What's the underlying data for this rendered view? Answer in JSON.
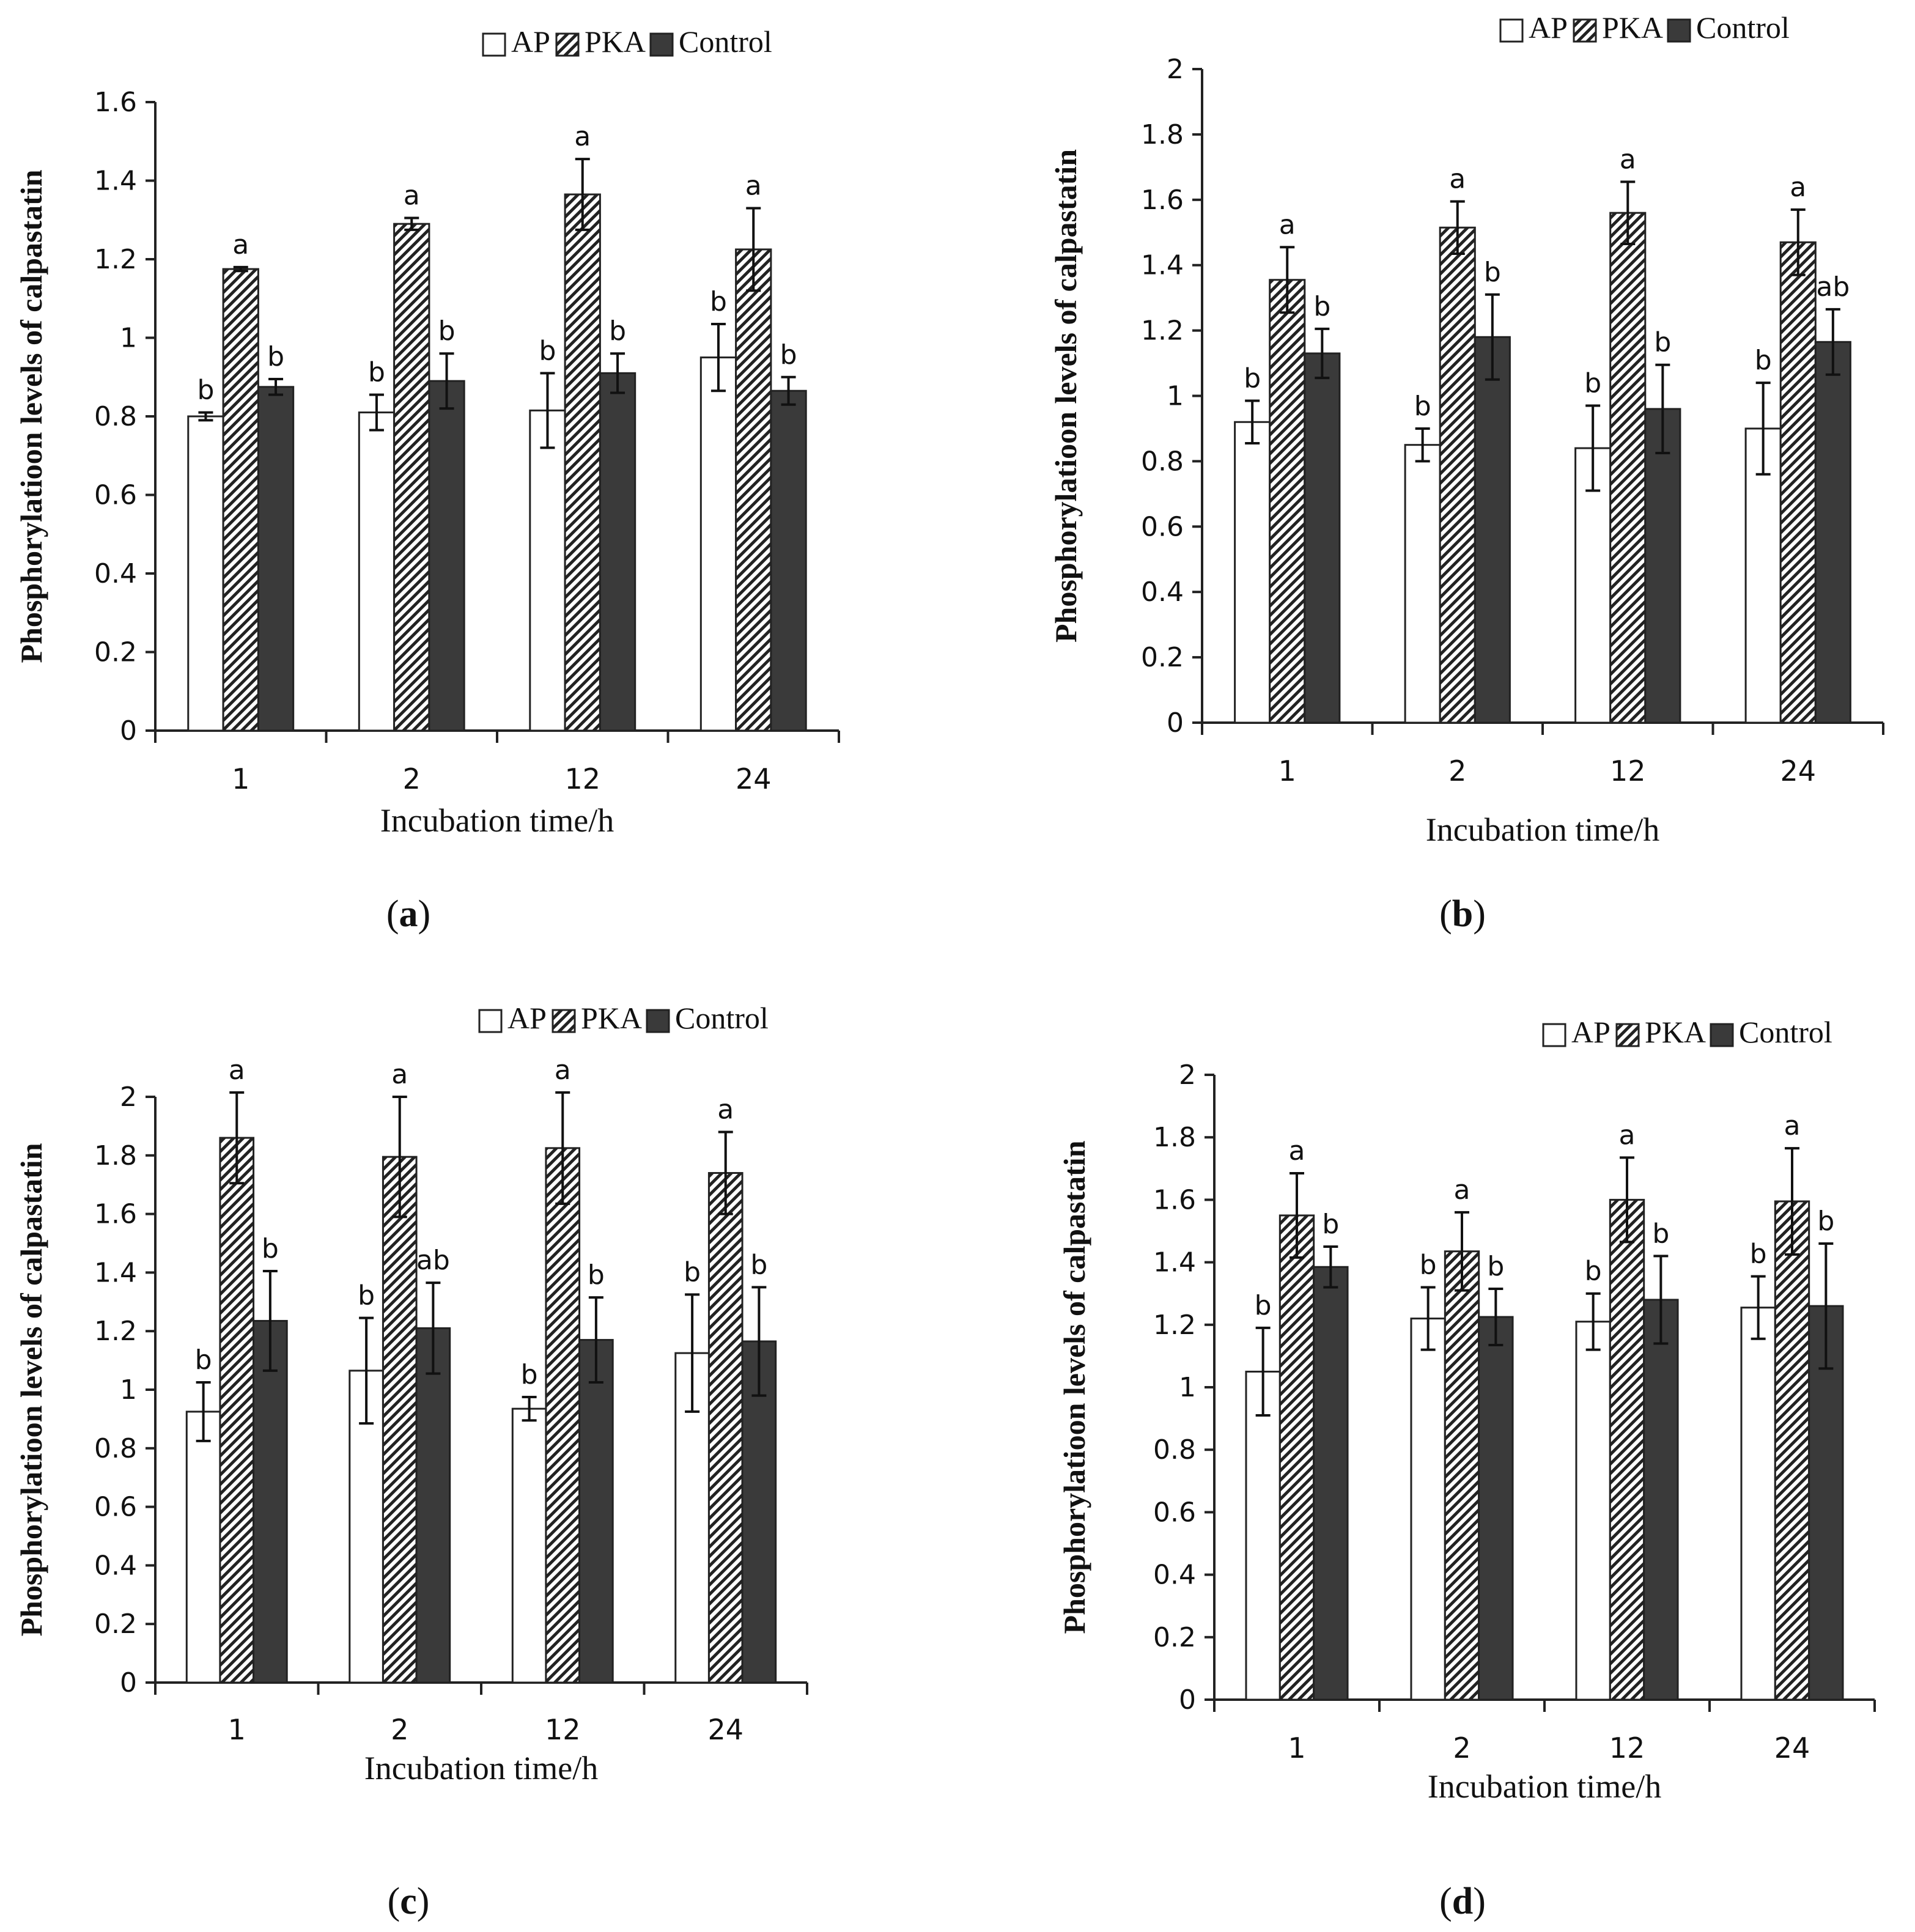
{
  "colors": {
    "ap": "#ffffff",
    "control": "#3a3a3a",
    "axis": "#222222",
    "hatch": "#222222"
  },
  "chart_data": [
    {
      "type": "bar",
      "panel_letter": "a",
      "categories": [
        "1",
        "2",
        "12",
        "24"
      ],
      "xlabel": "Incubation time/h",
      "ylabel": "Phosphorylatioon levels of calpastatin",
      "ylim": [
        0,
        1.6
      ],
      "yticks": [
        "0",
        "0.2",
        "0.4",
        "0.6",
        "0.8",
        "1",
        "1.2",
        "1.4",
        "1.6"
      ],
      "ytick_values": [
        0,
        0.2,
        0.4,
        0.6,
        0.8,
        1.0,
        1.2,
        1.4,
        1.6
      ],
      "legend": [
        "AP",
        "PKA",
        "Control"
      ],
      "legend_position": "top-right",
      "series": [
        {
          "name": "AP",
          "values": [
            0.8,
            0.81,
            0.815,
            0.95
          ],
          "errors": [
            0.01,
            0.045,
            0.095,
            0.085
          ],
          "labels": [
            "b",
            "b",
            "b",
            "b"
          ]
        },
        {
          "name": "PKA",
          "values": [
            1.175,
            1.29,
            1.365,
            1.225
          ],
          "errors": [
            0.005,
            0.015,
            0.09,
            0.105
          ],
          "labels": [
            "a",
            "a",
            "a",
            "a"
          ]
        },
        {
          "name": "Control",
          "values": [
            0.875,
            0.89,
            0.91,
            0.865
          ],
          "errors": [
            0.02,
            0.07,
            0.05,
            0.035
          ],
          "labels": [
            "b",
            "b",
            "b",
            "b"
          ]
        }
      ]
    },
    {
      "type": "bar",
      "panel_letter": "b",
      "categories": [
        "1",
        "2",
        "12",
        "24"
      ],
      "xlabel": "Incubation time/h",
      "ylabel": "Phosphorylatioon levels of calpastatin",
      "ylim": [
        0,
        2
      ],
      "yticks": [
        "0",
        "0.2",
        "0.4",
        "0.6",
        "0.8",
        "1",
        "1.2",
        "1.4",
        "1.6",
        "1.8",
        "2"
      ],
      "ytick_values": [
        0,
        0.2,
        0.4,
        0.6,
        0.8,
        1.0,
        1.2,
        1.4,
        1.6,
        1.8,
        2.0
      ],
      "legend": [
        "AP",
        "PKA",
        "Control"
      ],
      "legend_position": "top-right",
      "series": [
        {
          "name": "AP",
          "values": [
            0.92,
            0.85,
            0.84,
            0.9
          ],
          "errors": [
            0.065,
            0.05,
            0.13,
            0.14
          ],
          "labels": [
            "b",
            "b",
            "b",
            "b"
          ]
        },
        {
          "name": "PKA",
          "values": [
            1.355,
            1.515,
            1.56,
            1.47
          ],
          "errors": [
            0.1,
            0.08,
            0.095,
            0.1
          ],
          "labels": [
            "a",
            "a",
            "a",
            "a"
          ]
        },
        {
          "name": "Control",
          "values": [
            1.13,
            1.18,
            0.96,
            1.165
          ],
          "errors": [
            0.075,
            0.13,
            0.135,
            0.1
          ],
          "labels": [
            "b",
            "b",
            "b",
            "ab"
          ]
        }
      ]
    },
    {
      "type": "bar",
      "panel_letter": "c",
      "categories": [
        "1",
        "2",
        "12",
        "24"
      ],
      "xlabel": "Incubation time/h",
      "ylabel": "Phosphorylatioon levels of calpastatin",
      "ylim": [
        0,
        2
      ],
      "yticks": [
        "0",
        "0.2",
        "0.4",
        "0.6",
        "0.8",
        "1",
        "1.2",
        "1.4",
        "1.6",
        "1.8",
        "2"
      ],
      "ytick_values": [
        0,
        0.2,
        0.4,
        0.6,
        0.8,
        1.0,
        1.2,
        1.4,
        1.6,
        1.8,
        2.0
      ],
      "legend": [
        "AP",
        "PKA",
        "Control"
      ],
      "legend_position": "top-right",
      "series": [
        {
          "name": "AP",
          "values": [
            0.925,
            1.065,
            0.935,
            1.125
          ],
          "errors": [
            0.1,
            0.18,
            0.04,
            0.2
          ],
          "labels": [
            "b",
            "b",
            "b",
            "b"
          ]
        },
        {
          "name": "PKA",
          "values": [
            1.86,
            1.795,
            1.825,
            1.74
          ],
          "errors": [
            0.155,
            0.205,
            0.19,
            0.14
          ],
          "labels": [
            "a",
            "a",
            "a",
            "a"
          ]
        },
        {
          "name": "Control",
          "values": [
            1.235,
            1.21,
            1.17,
            1.165
          ],
          "errors": [
            0.17,
            0.155,
            0.145,
            0.185
          ],
          "labels": [
            "b",
            "ab",
            "b",
            "b"
          ]
        }
      ]
    },
    {
      "type": "bar",
      "panel_letter": "d",
      "categories": [
        "1",
        "2",
        "12",
        "24"
      ],
      "xlabel": "Incubation time/h",
      "ylabel": "Phosphorylatioon levels of calpastatin",
      "ylim": [
        0,
        2
      ],
      "yticks": [
        "0",
        "0.2",
        "0.4",
        "0.6",
        "0.8",
        "1",
        "1.2",
        "1.4",
        "1.6",
        "1.8",
        "2"
      ],
      "ytick_values": [
        0,
        0.2,
        0.4,
        0.6,
        0.8,
        1.0,
        1.2,
        1.4,
        1.6,
        1.8,
        2.0
      ],
      "legend": [
        "AP",
        "PKA",
        "Control"
      ],
      "legend_position": "top-right",
      "series": [
        {
          "name": "AP",
          "values": [
            1.05,
            1.22,
            1.21,
            1.255
          ],
          "errors": [
            0.14,
            0.1,
            0.09,
            0.1
          ],
          "labels": [
            "b",
            "b",
            "b",
            "b"
          ]
        },
        {
          "name": "PKA",
          "values": [
            1.55,
            1.435,
            1.6,
            1.595
          ],
          "errors": [
            0.135,
            0.125,
            0.135,
            0.17
          ],
          "labels": [
            "a",
            "a",
            "a",
            "a"
          ]
        },
        {
          "name": "Control",
          "values": [
            1.385,
            1.225,
            1.28,
            1.26
          ],
          "errors": [
            0.065,
            0.09,
            0.14,
            0.2
          ],
          "labels": [
            "b",
            "b",
            "b",
            "b"
          ]
        }
      ]
    }
  ]
}
